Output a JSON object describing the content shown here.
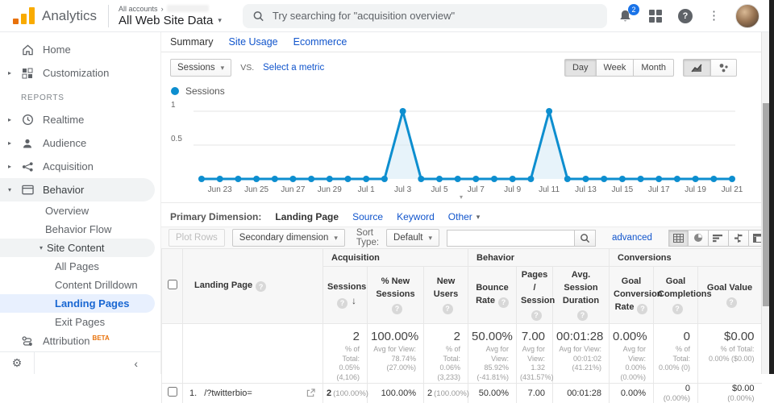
{
  "header": {
    "brand": "Analytics",
    "account_breadcrumb": "All accounts",
    "property_name": "All Web Site Data",
    "search_placeholder": "Try searching for \"acquisition overview\"",
    "notification_count": "2"
  },
  "icons": {
    "caret_down": "▾",
    "expand_right": "▸",
    "chevron_right": "›",
    "collapse_left": "‹",
    "kebab": "⋮",
    "gear": "⚙",
    "help": "?",
    "sort_desc": "↓"
  },
  "sidebar": {
    "home": "Home",
    "customization": "Customization",
    "reports_label": "REPORTS",
    "realtime": "Realtime",
    "audience": "Audience",
    "acquisition": "Acquisition",
    "behavior": "Behavior",
    "overview": "Overview",
    "behavior_flow": "Behavior Flow",
    "site_content": "Site Content",
    "all_pages": "All Pages",
    "content_drilldown": "Content Drilldown",
    "landing_pages": "Landing Pages",
    "exit_pages": "Exit Pages",
    "attribution": "Attribution",
    "beta_tag": "BETA"
  },
  "tabs": {
    "summary": "Summary",
    "site_usage": "Site Usage",
    "ecommerce": "Ecommerce"
  },
  "controls": {
    "metric_button": "Sessions",
    "vs_label": "VS.",
    "select_metric": "Select a metric",
    "granularity": [
      "Day",
      "Week",
      "Month"
    ]
  },
  "chart_data": {
    "type": "line",
    "title": "Sessions over time",
    "legend": "Sessions",
    "color": "#0d8ecf",
    "fill_color": "#d4e9f5",
    "x": [
      "Jun 22",
      "Jun 23",
      "Jun 24",
      "Jun 25",
      "Jun 26",
      "Jun 27",
      "Jun 28",
      "Jun 29",
      "Jun 30",
      "Jul 1",
      "Jul 2",
      "Jul 3",
      "Jul 4",
      "Jul 5",
      "Jul 6",
      "Jul 7",
      "Jul 8",
      "Jul 9",
      "Jul 10",
      "Jul 11",
      "Jul 12",
      "Jul 13",
      "Jul 14",
      "Jul 15",
      "Jul 16",
      "Jul 17",
      "Jul 18",
      "Jul 19",
      "Jul 20",
      "Jul 21"
    ],
    "series": [
      {
        "name": "Sessions",
        "values": [
          0,
          0,
          0,
          0,
          0,
          0,
          0,
          0,
          0,
          0,
          0,
          1,
          0,
          0,
          0,
          0,
          0,
          0,
          0,
          1,
          0,
          0,
          0,
          0,
          0,
          0,
          0,
          0,
          0,
          0
        ]
      }
    ],
    "yticks": [
      0.5,
      1
    ],
    "ylim": [
      0,
      1
    ],
    "x_label_every": 2,
    "grid": true,
    "legend_position": "top-left"
  },
  "primary_dimension": {
    "label": "Primary Dimension:",
    "active": "Landing Page",
    "link1": "Source",
    "link2": "Keyword",
    "other": "Other"
  },
  "toolbar": {
    "plot_rows": "Plot Rows",
    "secondary_dimension": "Secondary dimension",
    "sort_type_label": "Sort Type:",
    "sort_value": "Default",
    "search_value": "",
    "advanced_label": "advanced"
  },
  "table": {
    "groups": {
      "acquisition": "Acquisition",
      "behavior": "Behavior",
      "conversions": "Conversions"
    },
    "columns": {
      "landing_page": "Landing Page",
      "sessions": "Sessions",
      "pct_new_sessions": "% New Sessions",
      "new_users": "New Users",
      "bounce_rate": "Bounce Rate",
      "pages_session": "Pages / Session",
      "avg_duration": "Avg. Session Duration",
      "goal_conv_rate": "Goal Conversion Rate",
      "goal_completions": "Goal Completions",
      "goal_value": "Goal Value"
    },
    "totals": {
      "sessions": {
        "value": "2",
        "note": "% of Total: 0.05% (4,106)"
      },
      "pct_new_sessions": {
        "value": "100.00%",
        "note": "Avg for View: 78.74% (27.00%)"
      },
      "new_users": {
        "value": "2",
        "note": "% of Total: 0.06% (3,233)"
      },
      "bounce_rate": {
        "value": "50.00%",
        "note": "Avg for View: 85.92% (-41.81%)"
      },
      "pages_session": {
        "value": "7.00",
        "note": "Avg for View: 1.32 (431.57%)"
      },
      "avg_duration": {
        "value": "00:01:28",
        "note": "Avg for View: 00:01:02 (41.21%)"
      },
      "goal_conv_rate": {
        "value": "0.00%",
        "note": "Avg for View: 0.00% (0.00%)"
      },
      "goal_completions": {
        "value": "0",
        "note": "% of Total: 0.00% (0)"
      },
      "goal_value": {
        "value": "$0.00",
        "note": "% of Total: 0.00% ($0.00)"
      }
    },
    "row": {
      "index": "1.",
      "page": "/?twitterbio=",
      "sessions": "2",
      "sessions_share": "(100.00%)",
      "pct_new_sessions": "100.00%",
      "new_users": "2",
      "new_users_share": "(100.00%)",
      "bounce_rate": "50.00%",
      "pages_session": "7.00",
      "avg_duration": "00:01:28",
      "goal_conv_rate": "0.00%",
      "goal_completions": "0",
      "goal_completions_share": "(0.00%)",
      "goal_value": "$0.00",
      "goal_value_share": "(0.00%)"
    }
  }
}
